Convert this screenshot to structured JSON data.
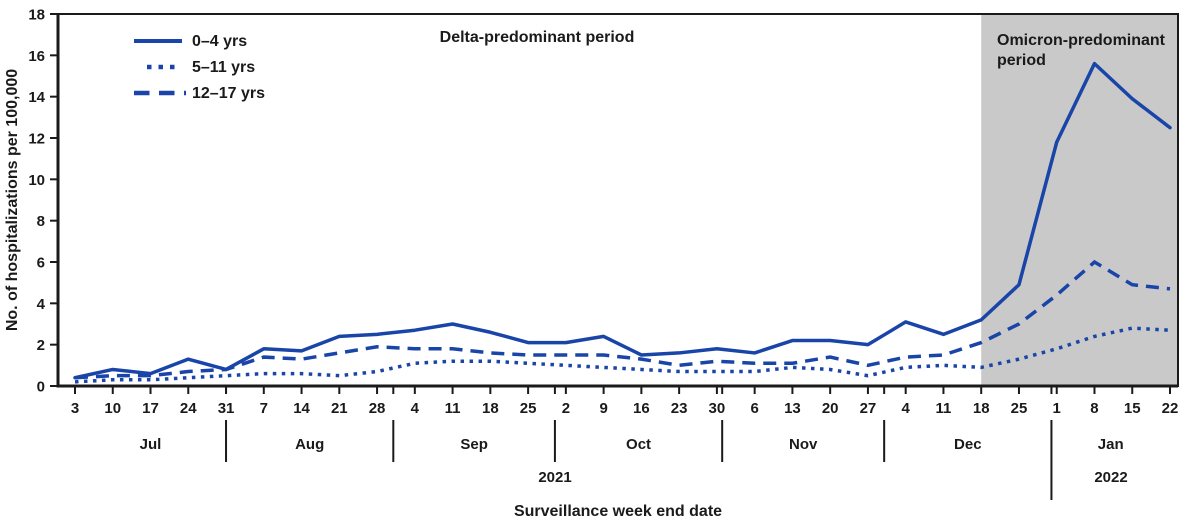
{
  "chart_data": {
    "type": "line",
    "title": "",
    "x_axis_label": "Surveillance week end date",
    "y_axis_label": "No. of hospitalizations per 100,000",
    "ylim": [
      0,
      18
    ],
    "y_tick_step": 2,
    "grid": false,
    "legend_position": "top-left-inside",
    "months": [
      {
        "label": "Jul",
        "weeks": [
          "3",
          "10",
          "17",
          "24",
          "31"
        ]
      },
      {
        "label": "Aug",
        "weeks": [
          "7",
          "14",
          "21",
          "28"
        ]
      },
      {
        "label": "Sep",
        "weeks": [
          "4",
          "11",
          "18",
          "25"
        ]
      },
      {
        "label": "Oct",
        "weeks": [
          "2",
          "9",
          "16",
          "23",
          "30"
        ]
      },
      {
        "label": "Nov",
        "weeks": [
          "6",
          "13",
          "20",
          "27"
        ]
      },
      {
        "label": "Dec",
        "weeks": [
          "4",
          "11",
          "18",
          "25"
        ]
      },
      {
        "label": "Jan",
        "weeks": [
          "1",
          "8",
          "15",
          "22"
        ]
      }
    ],
    "years": [
      "2021",
      "2022"
    ],
    "month_boundary_indices": [
      4,
      8.43,
      12.71,
      17.14,
      21.43
    ],
    "year_boundary_index": 25.86,
    "series": [
      {
        "name": "0–4 yrs",
        "style": "solid",
        "values": [
          0.4,
          0.8,
          0.6,
          1.3,
          0.8,
          1.8,
          1.7,
          2.4,
          2.5,
          2.7,
          3.0,
          2.6,
          2.1,
          2.1,
          2.4,
          1.5,
          1.6,
          1.8,
          1.6,
          2.2,
          2.2,
          2.0,
          3.1,
          2.5,
          3.2,
          4.9,
          11.8,
          15.6,
          13.9,
          12.5
        ]
      },
      {
        "name": "5–11 yrs",
        "style": "dotted",
        "values": [
          0.2,
          0.3,
          0.3,
          0.4,
          0.5,
          0.6,
          0.6,
          0.5,
          0.7,
          1.1,
          1.2,
          1.2,
          1.1,
          1.0,
          0.9,
          0.8,
          0.7,
          0.7,
          0.7,
          0.9,
          0.8,
          0.5,
          0.9,
          1.0,
          0.9,
          1.3,
          1.8,
          2.4,
          2.8,
          2.7
        ]
      },
      {
        "name": "12–17 yrs",
        "style": "dashed",
        "values": [
          0.4,
          0.5,
          0.5,
          0.7,
          0.8,
          1.4,
          1.3,
          1.6,
          1.9,
          1.8,
          1.8,
          1.6,
          1.5,
          1.5,
          1.5,
          1.3,
          1.0,
          1.2,
          1.1,
          1.1,
          1.4,
          1.0,
          1.4,
          1.5,
          2.1,
          3.0,
          4.4,
          6.0,
          4.9,
          4.7
        ]
      }
    ],
    "annotations": {
      "delta_label": "Delta-predominant period"
    },
    "shaded_region": {
      "label": "Omicron-predominant period",
      "label_lines": [
        "Omicron-predominant",
        "period"
      ],
      "start_index": 24,
      "start_week": "Dec 18",
      "end_week": "Jan 22"
    },
    "colors": {
      "line_blue": "#1a45a8",
      "shade_gray": "#c9c9c9",
      "axis_black": "#1a1a1a",
      "background": "#ffffff"
    }
  }
}
